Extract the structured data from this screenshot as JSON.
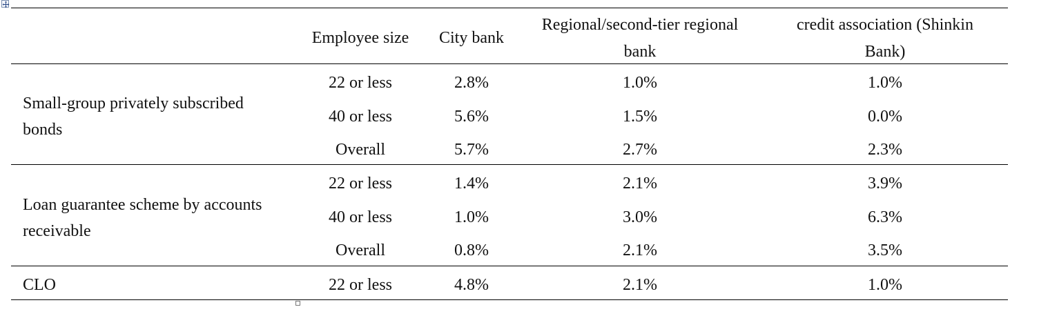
{
  "table": {
    "headers": {
      "group": "",
      "employee_size": "Employee size",
      "city_bank": "City bank",
      "regional_line1": "Regional/second-tier regional",
      "regional_line2": "bank",
      "credit_line1": "credit association (Shinkin",
      "credit_line2": "Bank)"
    },
    "groups": [
      {
        "label_line1": "Small-group privately subscribed",
        "label_line2": "bonds",
        "rows": [
          {
            "size": "22 or less",
            "city": "2.8%",
            "regional": "1.0%",
            "credit": "1.0%"
          },
          {
            "size": "40 or less",
            "city": "5.6%",
            "regional": "1.5%",
            "credit": "0.0%"
          },
          {
            "size": "Overall",
            "city": "5.7%",
            "regional": "2.7%",
            "credit": "2.3%"
          }
        ]
      },
      {
        "label_line1": "Loan guarantee scheme by accounts",
        "label_line2": "receivable",
        "rows": [
          {
            "size": "22 or less",
            "city": "1.4%",
            "regional": "2.1%",
            "credit": "3.9%"
          },
          {
            "size": "40 or less",
            "city": "1.0%",
            "regional": "3.0%",
            "credit": "6.3%"
          },
          {
            "size": "Overall",
            "city": "0.8%",
            "regional": "2.1%",
            "credit": "3.5%"
          }
        ]
      },
      {
        "label_line1": "CLO",
        "rows": [
          {
            "size": "22 or less",
            "city": "4.8%",
            "regional": "2.1%",
            "credit": "1.0%"
          }
        ]
      }
    ]
  }
}
